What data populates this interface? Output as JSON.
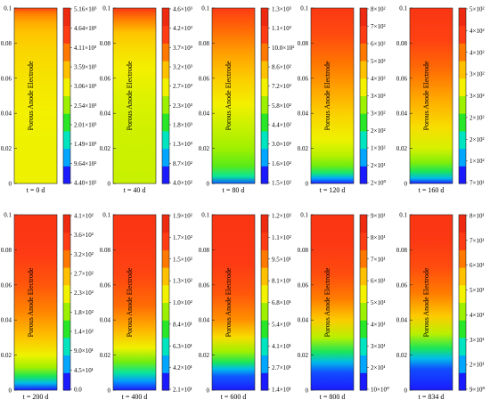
{
  "figure": {
    "palette": [
      "#1b1bff",
      "#00a6ff",
      "#00e5c0",
      "#28e628",
      "#9cf000",
      "#f2f200",
      "#ffc000",
      "#ff7800",
      "#ff3c14",
      "#ee2a10"
    ]
  },
  "chart_data": [
    {
      "type": "heatmap",
      "time_label": "t = 0 d",
      "region_label": "Porous Anode Electrode",
      "ylim": [
        0,
        0.1
      ],
      "y_ticks": [
        "0",
        "0.02",
        "0.04",
        "0.06",
        "0.08",
        "0.1"
      ],
      "colorbar_labels": [
        "4.40×10²",
        "9.64×10²",
        "1.49×10³",
        "2.01×10³",
        "2.54×10³",
        "3.06×10³",
        "3.59×10³",
        "4.11×10³",
        "4.64×10³",
        "5.16×10³"
      ],
      "gradient": {
        "stops": [
          0.0,
          0.25,
          0.4,
          0.55,
          0.66,
          0.76,
          0.86,
          0.92,
          0.97,
          1.0
        ],
        "levels": [
          0.55,
          0.55,
          0.56,
          0.58,
          0.6,
          0.62,
          0.66,
          0.7,
          0.77,
          0.88
        ]
      }
    },
    {
      "type": "heatmap",
      "time_label": "t = 40 d",
      "region_label": "Porous Anode Electrode",
      "ylim": [
        0,
        0.1
      ],
      "y_ticks": [
        "0",
        "0.02",
        "0.04",
        "0.06",
        "0.08",
        "0.1"
      ],
      "colorbar_labels": [
        "4.0×10²",
        "8.7×10²",
        "1.3×10³",
        "1.8×10³",
        "2.3×10³",
        "2.7×10³",
        "3.2×10³",
        "3.7×10³",
        "4.2×10³",
        "4.6×10³"
      ],
      "gradient": {
        "stops": [
          0.0,
          0.3,
          0.5,
          0.65,
          0.76,
          0.86,
          0.93,
          1.0
        ],
        "levels": [
          0.5,
          0.51,
          0.53,
          0.56,
          0.6,
          0.66,
          0.76,
          0.92
        ]
      }
    },
    {
      "type": "heatmap",
      "time_label": "t = 80 d",
      "region_label": "Porous Anode Electrode",
      "ylim": [
        0,
        0.1
      ],
      "y_ticks": [
        "0",
        "0.02",
        "0.04",
        "0.06",
        "0.08",
        "0.1"
      ],
      "colorbar_labels": [
        "1.5×10²",
        "1.6×10²",
        "3.0×10²",
        "4.4×10²",
        "5.8×10²",
        "7.2×10²",
        "8.6×10²",
        "10.0×10²",
        "1.1×10³",
        "1.3×10³"
      ],
      "gradient": {
        "stops": [
          0.0,
          0.04,
          0.1,
          0.2,
          0.32,
          0.45,
          0.6,
          0.75,
          0.9,
          1.0
        ],
        "levels": [
          0.05,
          0.25,
          0.38,
          0.45,
          0.5,
          0.56,
          0.64,
          0.72,
          0.82,
          0.9
        ]
      }
    },
    {
      "type": "heatmap",
      "time_label": "t = 120 d",
      "region_label": "Porous Anode Electrode",
      "ylim": [
        0,
        0.1
      ],
      "y_ticks": [
        "0",
        "0.02",
        "0.04",
        "0.06",
        "0.08",
        "0.1"
      ],
      "colorbar_labels": [
        "2×10⁰",
        "2×10¹",
        "1×10²",
        "2×10²",
        "3×10²",
        "3×10²",
        "4×10²",
        "5×10²",
        "6×10²",
        "7×10²",
        "8×10²"
      ],
      "gradient": {
        "stops": [
          0.0,
          0.03,
          0.06,
          0.1,
          0.16,
          0.25,
          0.38,
          0.52,
          0.68,
          0.84,
          1.0
        ],
        "levels": [
          0.0,
          0.12,
          0.28,
          0.4,
          0.48,
          0.55,
          0.62,
          0.7,
          0.78,
          0.86,
          0.92
        ]
      }
    },
    {
      "type": "heatmap",
      "time_label": "t = 160 d",
      "region_label": "Porous Anode Electrode",
      "ylim": [
        0,
        0.1
      ],
      "y_ticks": [
        "0",
        "0.02",
        "0.04",
        "0.06",
        "0.08",
        "0.1"
      ],
      "colorbar_labels": [
        "7×10¹",
        "1×10²",
        "2×10²",
        "2×10²",
        "3×10²",
        "3×10²",
        "4×10²",
        "4×10²",
        "5×10²"
      ],
      "gradient": {
        "stops": [
          0.0,
          0.03,
          0.07,
          0.12,
          0.2,
          0.32,
          0.48,
          0.65,
          0.82,
          1.0
        ],
        "levels": [
          0.0,
          0.15,
          0.3,
          0.42,
          0.52,
          0.6,
          0.7,
          0.8,
          0.88,
          0.93
        ]
      }
    },
    {
      "type": "heatmap",
      "time_label": "t = 200 d",
      "region_label": "Porous Anode Electrode",
      "ylim": [
        0,
        0.1
      ],
      "y_ticks": [
        "0",
        "0.02",
        "0.04",
        "0.06",
        "0.08",
        "0.1"
      ],
      "colorbar_labels": [
        "0.0",
        "4.5×10¹",
        "9.0×10¹",
        "1.4×10²",
        "1.8×10²",
        "2.3×10²",
        "2.7×10²",
        "3.2×10²",
        "3.6×10²",
        "4.1×10²"
      ],
      "gradient": {
        "stops": [
          0.0,
          0.04,
          0.08,
          0.13,
          0.2,
          0.3,
          0.45,
          0.6,
          0.78,
          1.0
        ],
        "levels": [
          0.0,
          0.15,
          0.3,
          0.45,
          0.55,
          0.66,
          0.76,
          0.84,
          0.9,
          0.93
        ]
      }
    },
    {
      "type": "heatmap",
      "time_label": "t = 400 d",
      "region_label": "Porous Anode Electrode",
      "ylim": [
        0,
        0.1
      ],
      "y_ticks": [
        "0",
        "0.02",
        "0.04",
        "0.06",
        "0.08",
        "0.1"
      ],
      "colorbar_labels": [
        "2.1×10¹",
        "4.2×10¹",
        "6.3×10¹",
        "8.4×10¹",
        "1.0×10²",
        "1.3×10²",
        "1.5×10²",
        "1.7×10²",
        "1.9×10²"
      ],
      "gradient": {
        "stops": [
          0.0,
          0.05,
          0.1,
          0.16,
          0.24,
          0.34,
          0.48,
          0.65,
          0.82,
          1.0
        ],
        "levels": [
          0.0,
          0.1,
          0.25,
          0.4,
          0.55,
          0.68,
          0.8,
          0.87,
          0.91,
          0.93
        ]
      }
    },
    {
      "type": "heatmap",
      "time_label": "t = 600 d",
      "region_label": "Porous Anode Electrode",
      "ylim": [
        0,
        0.1
      ],
      "y_ticks": [
        "0",
        "0.02",
        "0.04",
        "0.06",
        "0.08",
        "0.1"
      ],
      "colorbar_labels": [
        "1.4×10¹",
        "2.7×10¹",
        "4.1×10¹",
        "5.4×10¹",
        "6.8×10¹",
        "8.1×10¹",
        "9.5×10¹",
        "1.1×10²",
        "1.2×10²"
      ],
      "gradient": {
        "stops": [
          0.0,
          0.08,
          0.12,
          0.16,
          0.22,
          0.3,
          0.4,
          0.55,
          0.72,
          1.0
        ],
        "levels": [
          0.0,
          0.05,
          0.15,
          0.3,
          0.45,
          0.6,
          0.74,
          0.84,
          0.9,
          0.93
        ]
      }
    },
    {
      "type": "heatmap",
      "time_label": "t = 800 d",
      "region_label": "Porous Anode Electrode",
      "ylim": [
        0,
        0.1
      ],
      "y_ticks": [
        "0",
        "0.02",
        "0.04",
        "0.06",
        "0.08",
        "0.1"
      ],
      "colorbar_labels": [
        "10×10⁰",
        "2×10¹",
        "3×10¹",
        "4×10¹",
        "5×10¹",
        "6×10¹",
        "7×10¹",
        "8×10¹",
        "9×10¹"
      ],
      "gradient": {
        "stops": [
          0.0,
          0.1,
          0.16,
          0.22,
          0.3,
          0.4,
          0.52,
          0.66,
          0.82,
          1.0
        ],
        "levels": [
          0.0,
          0.04,
          0.15,
          0.3,
          0.48,
          0.64,
          0.77,
          0.86,
          0.91,
          0.93
        ]
      }
    },
    {
      "type": "heatmap",
      "time_label": "t = 834 d",
      "region_label": "Porous Anode Electrode",
      "ylim": [
        0,
        0.1
      ],
      "y_ticks": [
        "0",
        "0.02",
        "0.04",
        "0.06",
        "0.08",
        "0.1"
      ],
      "colorbar_labels": [
        "9×10⁰",
        "2×10¹",
        "3×10¹",
        "4×10¹",
        "5×10¹",
        "6×10¹",
        "7×10¹",
        "8×10¹"
      ],
      "gradient": {
        "stops": [
          0.0,
          0.12,
          0.18,
          0.24,
          0.32,
          0.42,
          0.55,
          0.7,
          0.85,
          1.0
        ],
        "levels": [
          0.0,
          0.04,
          0.15,
          0.3,
          0.48,
          0.64,
          0.77,
          0.86,
          0.91,
          0.93
        ]
      }
    }
  ]
}
